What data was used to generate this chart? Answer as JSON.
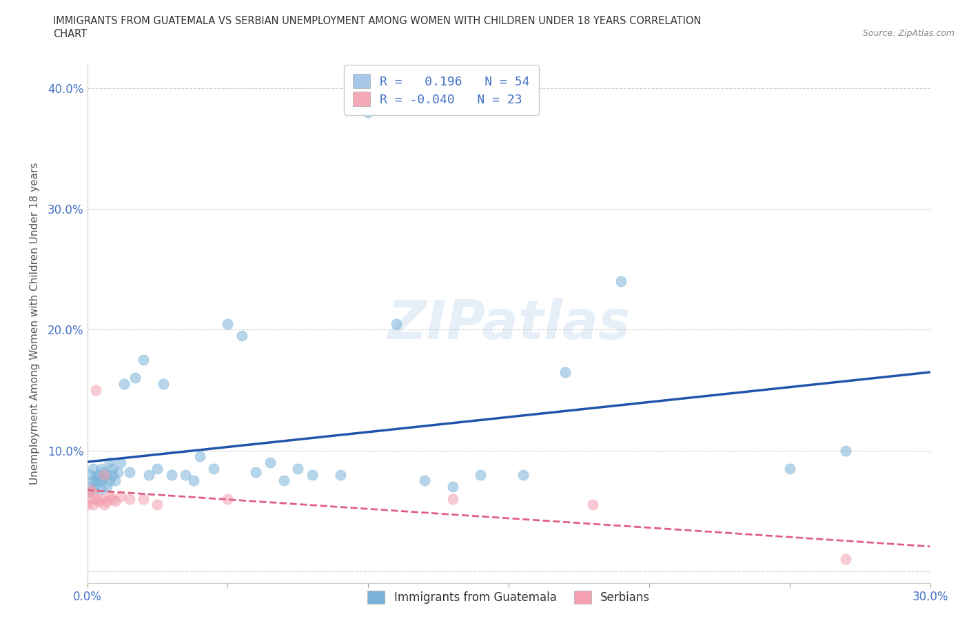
{
  "title_line1": "IMMIGRANTS FROM GUATEMALA VS SERBIAN UNEMPLOYMENT AMONG WOMEN WITH CHILDREN UNDER 18 YEARS CORRELATION",
  "title_line2": "CHART",
  "source": "Source: ZipAtlas.com",
  "ylabel": "Unemployment Among Women with Children Under 18 years",
  "xlim": [
    0.0,
    0.3
  ],
  "ylim": [
    -0.01,
    0.42
  ],
  "xtick_positions": [
    0.0,
    0.05,
    0.1,
    0.15,
    0.2,
    0.25,
    0.3
  ],
  "xticklabels": [
    "0.0%",
    "",
    "",
    "",
    "",
    "",
    "30.0%"
  ],
  "ytick_positions": [
    0.0,
    0.1,
    0.2,
    0.3,
    0.4
  ],
  "yticklabels": [
    "",
    "10.0%",
    "20.0%",
    "30.0%",
    "40.0%"
  ],
  "legend_r1": "R =   0.196   N = 54",
  "legend_r2": "R = -0.040   N = 23",
  "legend_color1": "#a8c8e8",
  "legend_color2": "#f4a8b8",
  "guatemala_color": "#7ab3d9",
  "serbian_color": "#f4a0b0",
  "blue_line_color": "#2255aa",
  "pink_line_color": "#e06080",
  "watermark": "ZIPatlas",
  "grid_color": "#cccccc",
  "background_color": "#ffffff",
  "tick_color": "#4472c4",
  "title_color": "#333333",
  "ylabel_color": "#555555",
  "guatemala_x": [
    0.0,
    0.001,
    0.001,
    0.002,
    0.002,
    0.002,
    0.003,
    0.003,
    0.004,
    0.004,
    0.005,
    0.005,
    0.005,
    0.006,
    0.006,
    0.007,
    0.007,
    0.008,
    0.008,
    0.009,
    0.009,
    0.01,
    0.011,
    0.012,
    0.013,
    0.015,
    0.017,
    0.02,
    0.022,
    0.025,
    0.027,
    0.03,
    0.035,
    0.038,
    0.04,
    0.045,
    0.05,
    0.055,
    0.06,
    0.065,
    0.07,
    0.075,
    0.08,
    0.09,
    0.1,
    0.11,
    0.12,
    0.13,
    0.14,
    0.155,
    0.17,
    0.19,
    0.25,
    0.27
  ],
  "guatemala_y": [
    0.065,
    0.07,
    0.08,
    0.068,
    0.075,
    0.085,
    0.072,
    0.078,
    0.075,
    0.08,
    0.068,
    0.075,
    0.085,
    0.078,
    0.082,
    0.07,
    0.08,
    0.075,
    0.09,
    0.08,
    0.085,
    0.075,
    0.082,
    0.09,
    0.155,
    0.082,
    0.16,
    0.175,
    0.08,
    0.085,
    0.155,
    0.08,
    0.08,
    0.075,
    0.095,
    0.085,
    0.205,
    0.195,
    0.082,
    0.09,
    0.075,
    0.085,
    0.08,
    0.08,
    0.38,
    0.205,
    0.075,
    0.07,
    0.08,
    0.08,
    0.165,
    0.24,
    0.085,
    0.1
  ],
  "serbian_x": [
    0.0,
    0.001,
    0.001,
    0.002,
    0.002,
    0.003,
    0.003,
    0.004,
    0.005,
    0.006,
    0.006,
    0.007,
    0.008,
    0.009,
    0.01,
    0.012,
    0.015,
    0.02,
    0.025,
    0.05,
    0.13,
    0.18,
    0.27
  ],
  "serbian_y": [
    0.055,
    0.06,
    0.068,
    0.055,
    0.065,
    0.15,
    0.06,
    0.058,
    0.06,
    0.055,
    0.08,
    0.058,
    0.062,
    0.06,
    0.058,
    0.062,
    0.06,
    0.06,
    0.055,
    0.06,
    0.06,
    0.055,
    0.01
  ]
}
